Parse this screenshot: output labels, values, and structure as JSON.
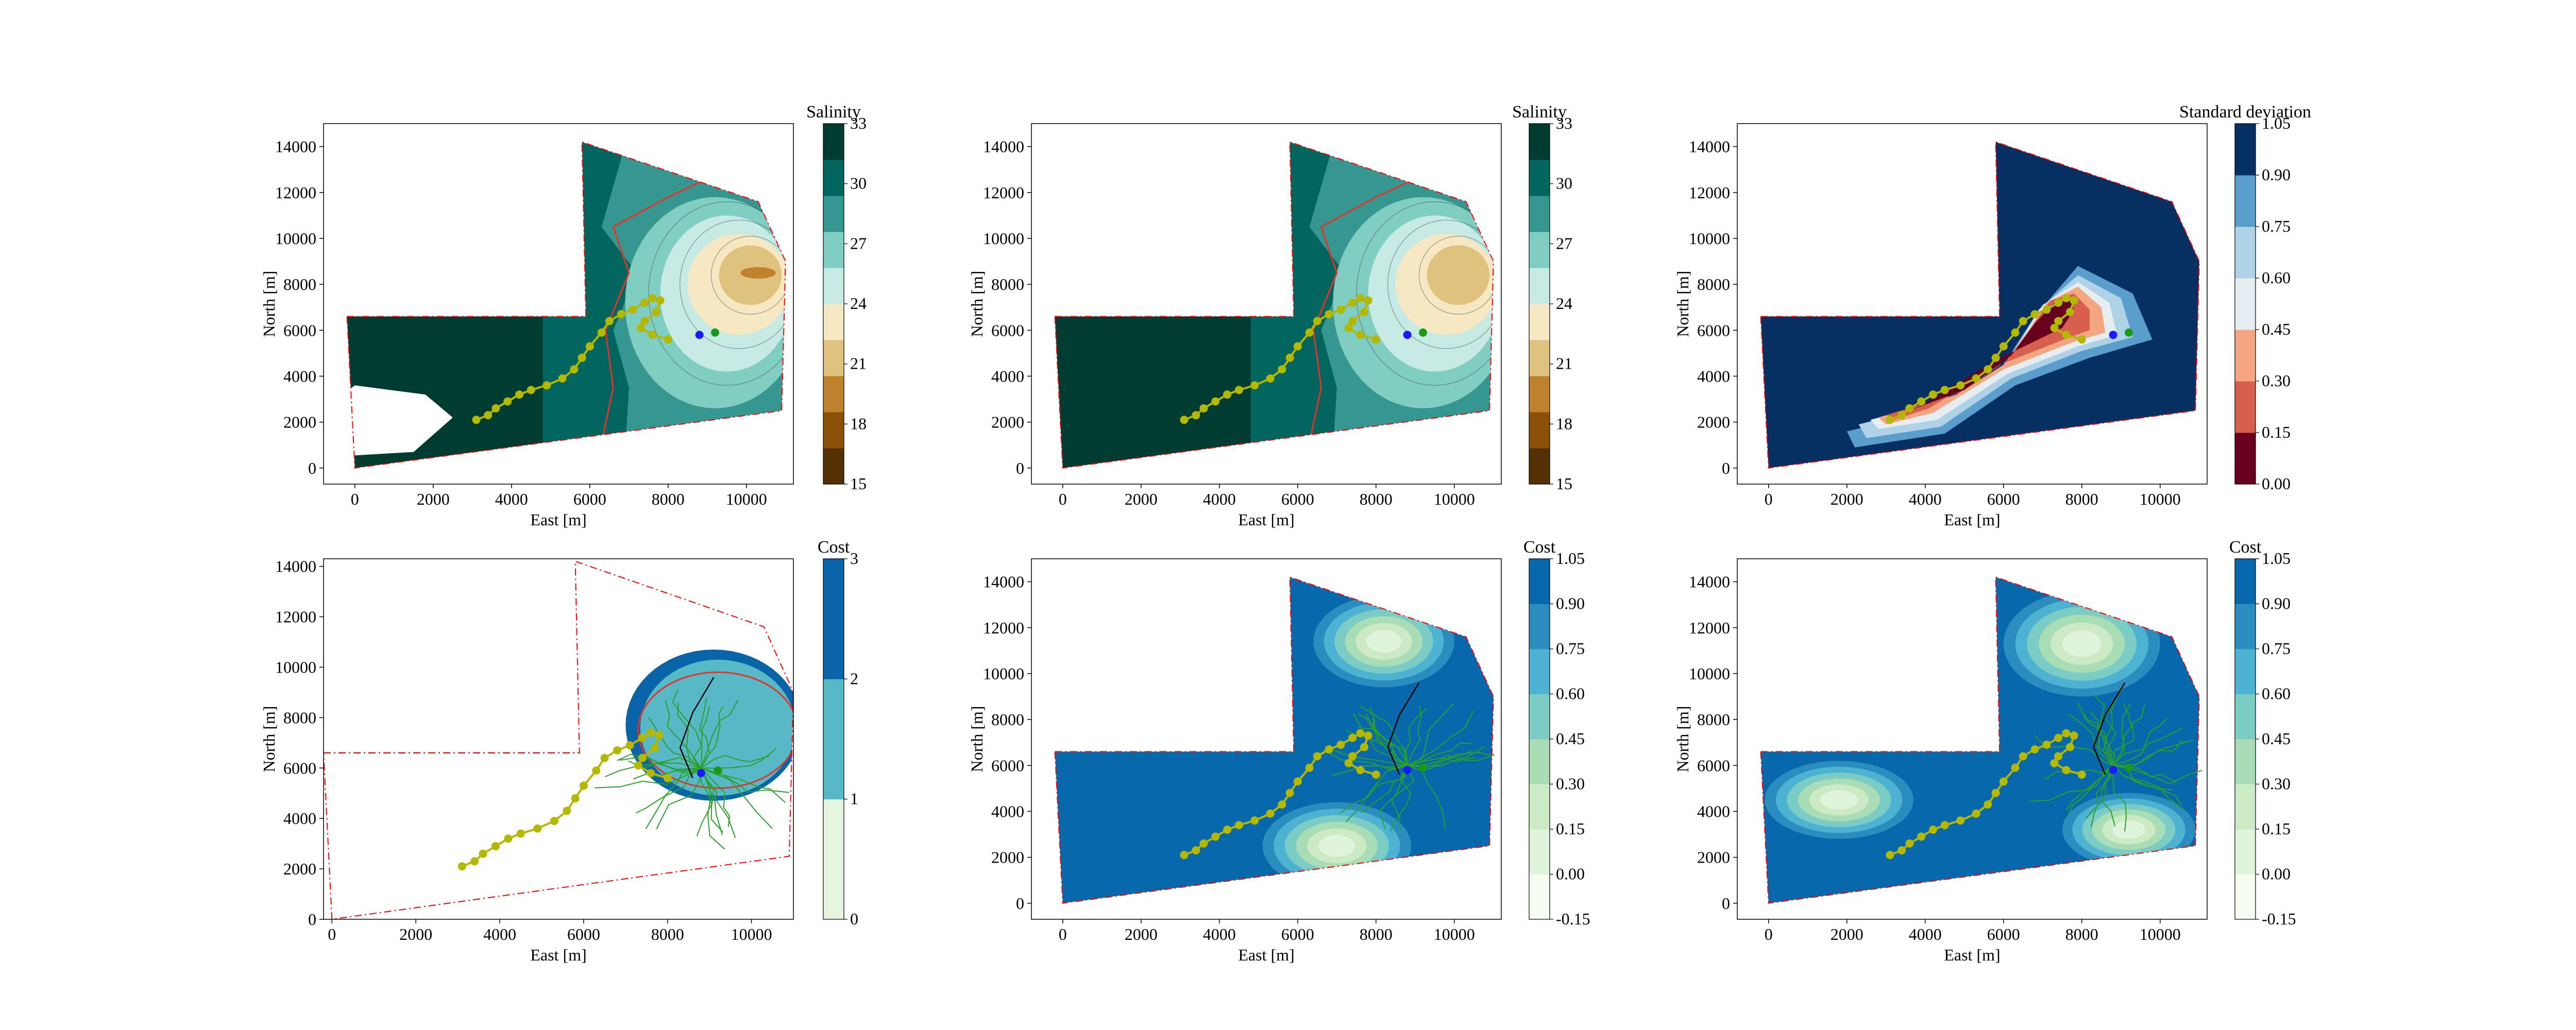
{
  "figure_theme": {
    "background": "#ffffff",
    "boundary_color": "#ff0000",
    "path_color": "#b5b800",
    "front_color": "#e5332a",
    "start_color": "#1a1aff",
    "end_color": "#1a9a1a",
    "tree_color": "#2aa02a"
  },
  "chart_data": [
    {
      "id": "p1",
      "type": "heatmap",
      "title": "",
      "xlabel": "East [m]",
      "ylabel": "North [m]",
      "colorbar_label": "Salinity",
      "xlim": [
        -800,
        11200
      ],
      "ylim": [
        -700,
        15000
      ],
      "xticks": [
        "0",
        "2000",
        "4000",
        "6000",
        "8000",
        "10000"
      ],
      "yticks": [
        "0",
        "2000",
        "4000",
        "6000",
        "8000",
        "10000",
        "12000",
        "14000"
      ],
      "colorbar_ticks": [
        "15",
        "18",
        "21",
        "24",
        "27",
        "30",
        "33"
      ],
      "colormap": [
        "#543005",
        "#8c5109",
        "#bf812d",
        "#dfc27d",
        "#f6e8c3",
        "#c7eae5",
        "#80cdc1",
        "#35978f",
        "#01665e",
        "#003c30"
      ],
      "domain": [
        [
          -200,
          6600
        ],
        [
          5900,
          6600
        ],
        [
          5800,
          14200
        ],
        [
          10300,
          11600
        ],
        [
          11000,
          9000
        ],
        [
          10900,
          2500
        ],
        [
          0,
          0
        ]
      ],
      "path": [
        [
          3100,
          2100
        ],
        [
          3400,
          2300
        ],
        [
          3600,
          2600
        ],
        [
          3900,
          2900
        ],
        [
          4200,
          3200
        ],
        [
          4500,
          3400
        ],
        [
          4900,
          3600
        ],
        [
          5300,
          3900
        ],
        [
          5600,
          4300
        ],
        [
          5800,
          4800
        ],
        [
          6000,
          5300
        ],
        [
          6300,
          5900
        ],
        [
          6500,
          6400
        ],
        [
          6800,
          6700
        ],
        [
          7100,
          6900
        ],
        [
          7400,
          7200
        ],
        [
          7600,
          7400
        ],
        [
          7800,
          7300
        ],
        [
          7700,
          6800
        ],
        [
          7400,
          6400
        ],
        [
          7300,
          6100
        ],
        [
          7600,
          5800
        ],
        [
          8000,
          5600
        ]
      ],
      "start": [
        8800,
        5800
      ],
      "end": [
        9200,
        5900
      ]
    },
    {
      "id": "p2",
      "type": "heatmap",
      "title": "",
      "xlabel": "East [m]",
      "ylabel": "North [m]",
      "colorbar_label": "Salinity",
      "xlim": [
        -800,
        11200
      ],
      "ylim": [
        -700,
        15000
      ],
      "xticks": [
        "0",
        "2000",
        "4000",
        "6000",
        "8000",
        "10000"
      ],
      "yticks": [
        "0",
        "2000",
        "4000",
        "6000",
        "8000",
        "10000",
        "12000",
        "14000"
      ],
      "colorbar_ticks": [
        "15",
        "18",
        "21",
        "24",
        "27",
        "30",
        "33"
      ],
      "colormap": [
        "#543005",
        "#8c5109",
        "#bf812d",
        "#dfc27d",
        "#f6e8c3",
        "#c7eae5",
        "#80cdc1",
        "#35978f",
        "#01665e",
        "#003c30"
      ],
      "domain": [
        [
          -200,
          6600
        ],
        [
          5900,
          6600
        ],
        [
          5800,
          14200
        ],
        [
          10300,
          11600
        ],
        [
          11000,
          9000
        ],
        [
          10900,
          2500
        ],
        [
          0,
          0
        ]
      ],
      "path": [
        [
          3100,
          2100
        ],
        [
          3400,
          2300
        ],
        [
          3600,
          2600
        ],
        [
          3900,
          2900
        ],
        [
          4200,
          3200
        ],
        [
          4500,
          3400
        ],
        [
          4900,
          3600
        ],
        [
          5300,
          3900
        ],
        [
          5600,
          4300
        ],
        [
          5800,
          4800
        ],
        [
          6000,
          5300
        ],
        [
          6300,
          5900
        ],
        [
          6500,
          6400
        ],
        [
          6800,
          6700
        ],
        [
          7100,
          6900
        ],
        [
          7400,
          7200
        ],
        [
          7600,
          7400
        ],
        [
          7800,
          7300
        ],
        [
          7700,
          6800
        ],
        [
          7400,
          6400
        ],
        [
          7300,
          6100
        ],
        [
          7600,
          5800
        ],
        [
          8000,
          5600
        ]
      ],
      "start": [
        8800,
        5800
      ],
      "end": [
        9200,
        5900
      ]
    },
    {
      "id": "p3",
      "type": "heatmap",
      "title": "",
      "xlabel": "East [m]",
      "ylabel": "North [m]",
      "colorbar_label": "Standard deviation",
      "xlim": [
        -800,
        11200
      ],
      "ylim": [
        -700,
        15000
      ],
      "xticks": [
        "0",
        "2000",
        "4000",
        "6000",
        "8000",
        "10000"
      ],
      "yticks": [
        "0",
        "2000",
        "4000",
        "6000",
        "8000",
        "10000",
        "12000",
        "14000"
      ],
      "colorbar_ticks": [
        "0.00",
        "0.15",
        "0.30",
        "0.45",
        "0.60",
        "0.75",
        "0.90",
        "1.05"
      ],
      "colormap": [
        "#67001f",
        "#d6604d",
        "#f4a582",
        "#e6eef2",
        "#b0d2e6",
        "#5a9ecd",
        "#053061"
      ],
      "domain": [
        [
          -200,
          6600
        ],
        [
          5900,
          6600
        ],
        [
          5800,
          14200
        ],
        [
          10300,
          11600
        ],
        [
          11000,
          9000
        ],
        [
          10900,
          2500
        ],
        [
          0,
          0
        ]
      ],
      "path": [
        [
          3100,
          2100
        ],
        [
          3400,
          2300
        ],
        [
          3600,
          2600
        ],
        [
          3900,
          2900
        ],
        [
          4200,
          3200
        ],
        [
          4500,
          3400
        ],
        [
          4900,
          3600
        ],
        [
          5300,
          3900
        ],
        [
          5600,
          4300
        ],
        [
          5800,
          4800
        ],
        [
          6000,
          5300
        ],
        [
          6300,
          5900
        ],
        [
          6500,
          6400
        ],
        [
          6800,
          6700
        ],
        [
          7100,
          6900
        ],
        [
          7400,
          7200
        ],
        [
          7600,
          7400
        ],
        [
          7800,
          7300
        ],
        [
          7700,
          6800
        ],
        [
          7400,
          6400
        ],
        [
          7300,
          6100
        ],
        [
          7600,
          5800
        ],
        [
          8000,
          5600
        ]
      ],
      "start": [
        8800,
        5800
      ],
      "end": [
        9200,
        5900
      ]
    },
    {
      "id": "p4",
      "type": "heatmap",
      "title": "",
      "xlabel": "East [m]",
      "ylabel": "North [m]",
      "colorbar_label": "Cost",
      "xlim": [
        -200,
        11000
      ],
      "ylim": [
        0,
        14300
      ],
      "xticks": [
        "0",
        "2000",
        "4000",
        "6000",
        "8000",
        "10000"
      ],
      "yticks": [
        "0",
        "2000",
        "4000",
        "6000",
        "8000",
        "10000",
        "12000",
        "14000"
      ],
      "colorbar_ticks": [
        "0",
        "1",
        "2",
        "3"
      ],
      "colormap": [
        "#e6f5e0",
        "#57b8c6",
        "#0a64a8"
      ],
      "domain": [
        [
          -200,
          6600
        ],
        [
          5900,
          6600
        ],
        [
          5800,
          14200
        ],
        [
          10300,
          11600
        ],
        [
          11000,
          9000
        ],
        [
          10900,
          2500
        ],
        [
          0,
          0
        ]
      ],
      "path": [
        [
          3100,
          2100
        ],
        [
          3400,
          2300
        ],
        [
          3600,
          2600
        ],
        [
          3900,
          2900
        ],
        [
          4200,
          3200
        ],
        [
          4500,
          3400
        ],
        [
          4900,
          3600
        ],
        [
          5300,
          3900
        ],
        [
          5600,
          4300
        ],
        [
          5800,
          4800
        ],
        [
          6000,
          5300
        ],
        [
          6300,
          5900
        ],
        [
          6500,
          6400
        ],
        [
          6800,
          6700
        ],
        [
          7100,
          6900
        ],
        [
          7400,
          7200
        ],
        [
          7600,
          7400
        ],
        [
          7800,
          7300
        ],
        [
          7700,
          6800
        ],
        [
          7400,
          6400
        ],
        [
          7300,
          6100
        ],
        [
          7600,
          5800
        ],
        [
          8000,
          5600
        ]
      ],
      "start": [
        8800,
        5800
      ],
      "end": [
        9200,
        5900
      ]
    },
    {
      "id": "p5",
      "type": "heatmap",
      "title": "",
      "xlabel": "East [m]",
      "ylabel": "North [m]",
      "colorbar_label": "Cost",
      "xlim": [
        -800,
        11200
      ],
      "ylim": [
        -700,
        15000
      ],
      "xticks": [
        "0",
        "2000",
        "4000",
        "6000",
        "8000",
        "10000"
      ],
      "yticks": [
        "0",
        "2000",
        "4000",
        "6000",
        "8000",
        "10000",
        "12000",
        "14000"
      ],
      "colorbar_ticks": [
        "-0.15",
        "0.00",
        "0.15",
        "0.30",
        "0.45",
        "0.60",
        "0.75",
        "0.90",
        "1.05"
      ],
      "colormap": [
        "#f7fcf0",
        "#e0f3db",
        "#ccebc5",
        "#a8ddb5",
        "#7bccc4",
        "#4eb3d3",
        "#2b8cbe",
        "#0868ac"
      ],
      "domain": [
        [
          -200,
          6600
        ],
        [
          5900,
          6600
        ],
        [
          5800,
          14200
        ],
        [
          10300,
          11600
        ],
        [
          11000,
          9000
        ],
        [
          10900,
          2500
        ],
        [
          0,
          0
        ]
      ],
      "path": [
        [
          3100,
          2100
        ],
        [
          3400,
          2300
        ],
        [
          3600,
          2600
        ],
        [
          3900,
          2900
        ],
        [
          4200,
          3200
        ],
        [
          4500,
          3400
        ],
        [
          4900,
          3600
        ],
        [
          5300,
          3900
        ],
        [
          5600,
          4300
        ],
        [
          5800,
          4800
        ],
        [
          6000,
          5300
        ],
        [
          6300,
          5900
        ],
        [
          6500,
          6400
        ],
        [
          6800,
          6700
        ],
        [
          7100,
          6900
        ],
        [
          7400,
          7200
        ],
        [
          7600,
          7400
        ],
        [
          7800,
          7300
        ],
        [
          7700,
          6800
        ],
        [
          7400,
          6400
        ],
        [
          7300,
          6100
        ],
        [
          7600,
          5800
        ],
        [
          8000,
          5600
        ]
      ],
      "start": [
        8800,
        5800
      ],
      "end": [
        9200,
        5900
      ]
    },
    {
      "id": "p6",
      "type": "heatmap",
      "title": "",
      "xlabel": "East [m]",
      "ylabel": "North [m]",
      "colorbar_label": "Cost",
      "xlim": [
        -800,
        11200
      ],
      "ylim": [
        -700,
        15000
      ],
      "xticks": [
        "0",
        "2000",
        "4000",
        "6000",
        "8000",
        "10000"
      ],
      "yticks": [
        "0",
        "2000",
        "4000",
        "6000",
        "8000",
        "10000",
        "12000",
        "14000"
      ],
      "colorbar_ticks": [
        "-0.15",
        "0.00",
        "0.15",
        "0.30",
        "0.45",
        "0.60",
        "0.75",
        "0.90",
        "1.05"
      ],
      "colormap": [
        "#f7fcf0",
        "#e0f3db",
        "#ccebc5",
        "#a8ddb5",
        "#7bccc4",
        "#4eb3d3",
        "#2b8cbe",
        "#0868ac"
      ],
      "domain": [
        [
          -200,
          6600
        ],
        [
          5900,
          6600
        ],
        [
          5800,
          14200
        ],
        [
          10300,
          11600
        ],
        [
          11000,
          9000
        ],
        [
          10900,
          2500
        ],
        [
          0,
          0
        ]
      ],
      "path": [
        [
          3100,
          2100
        ],
        [
          3400,
          2300
        ],
        [
          3600,
          2600
        ],
        [
          3900,
          2900
        ],
        [
          4200,
          3200
        ],
        [
          4500,
          3400
        ],
        [
          4900,
          3600
        ],
        [
          5300,
          3900
        ],
        [
          5600,
          4300
        ],
        [
          5800,
          4800
        ],
        [
          6000,
          5300
        ],
        [
          6300,
          5900
        ],
        [
          6500,
          6400
        ],
        [
          6800,
          6700
        ],
        [
          7100,
          6900
        ],
        [
          7400,
          7200
        ],
        [
          7600,
          7400
        ],
        [
          7800,
          7300
        ],
        [
          7700,
          6800
        ],
        [
          7400,
          6400
        ],
        [
          7300,
          6100
        ],
        [
          7600,
          5800
        ],
        [
          8000,
          5600
        ]
      ],
      "start": [
        8800,
        5800
      ],
      "end": [
        9200,
        5900
      ]
    }
  ]
}
